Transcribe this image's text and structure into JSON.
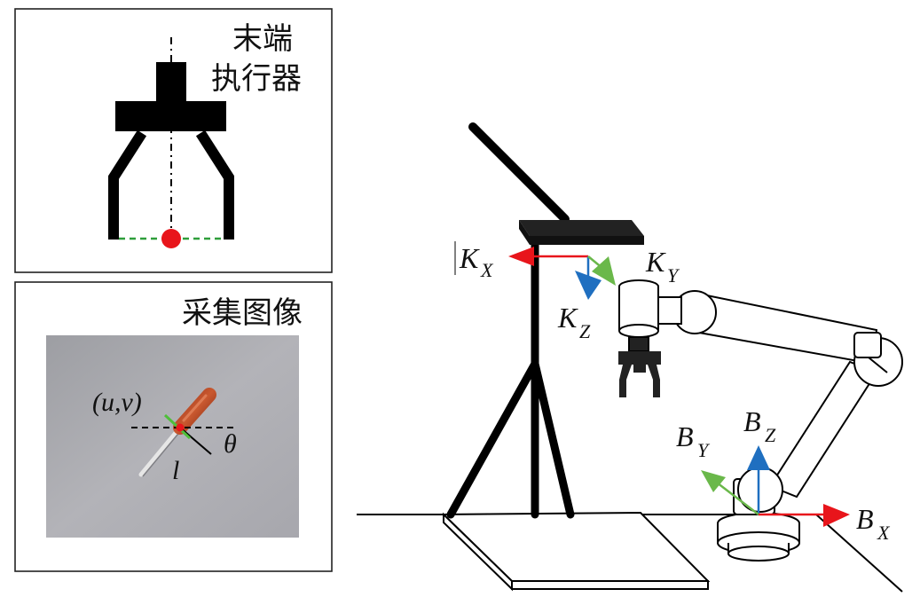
{
  "panels": {
    "end_effector": {
      "title_line1": "末端",
      "title_line2": "执行器"
    },
    "captured_image": {
      "title": "采集图像",
      "uv_label": "(u,v)",
      "theta_label": "θ",
      "l_label": "l"
    }
  },
  "frames": {
    "camera": {
      "x_main": "K",
      "x_sub": "X",
      "y_main": "K",
      "y_sub": "Y",
      "z_main": "K",
      "z_sub": "Z"
    },
    "base": {
      "x_main": "B",
      "x_sub": "X",
      "y_main": "B",
      "y_sub": "Y",
      "z_main": "B",
      "z_sub": "Z"
    }
  },
  "colors": {
    "x_axis": "#e8151b",
    "y_axis": "#6ab84a",
    "z_axis": "#1f6fc0",
    "gripper": "#000000",
    "grasp_point": "#e8151b",
    "grasp_line": "#2e9e3a"
  }
}
